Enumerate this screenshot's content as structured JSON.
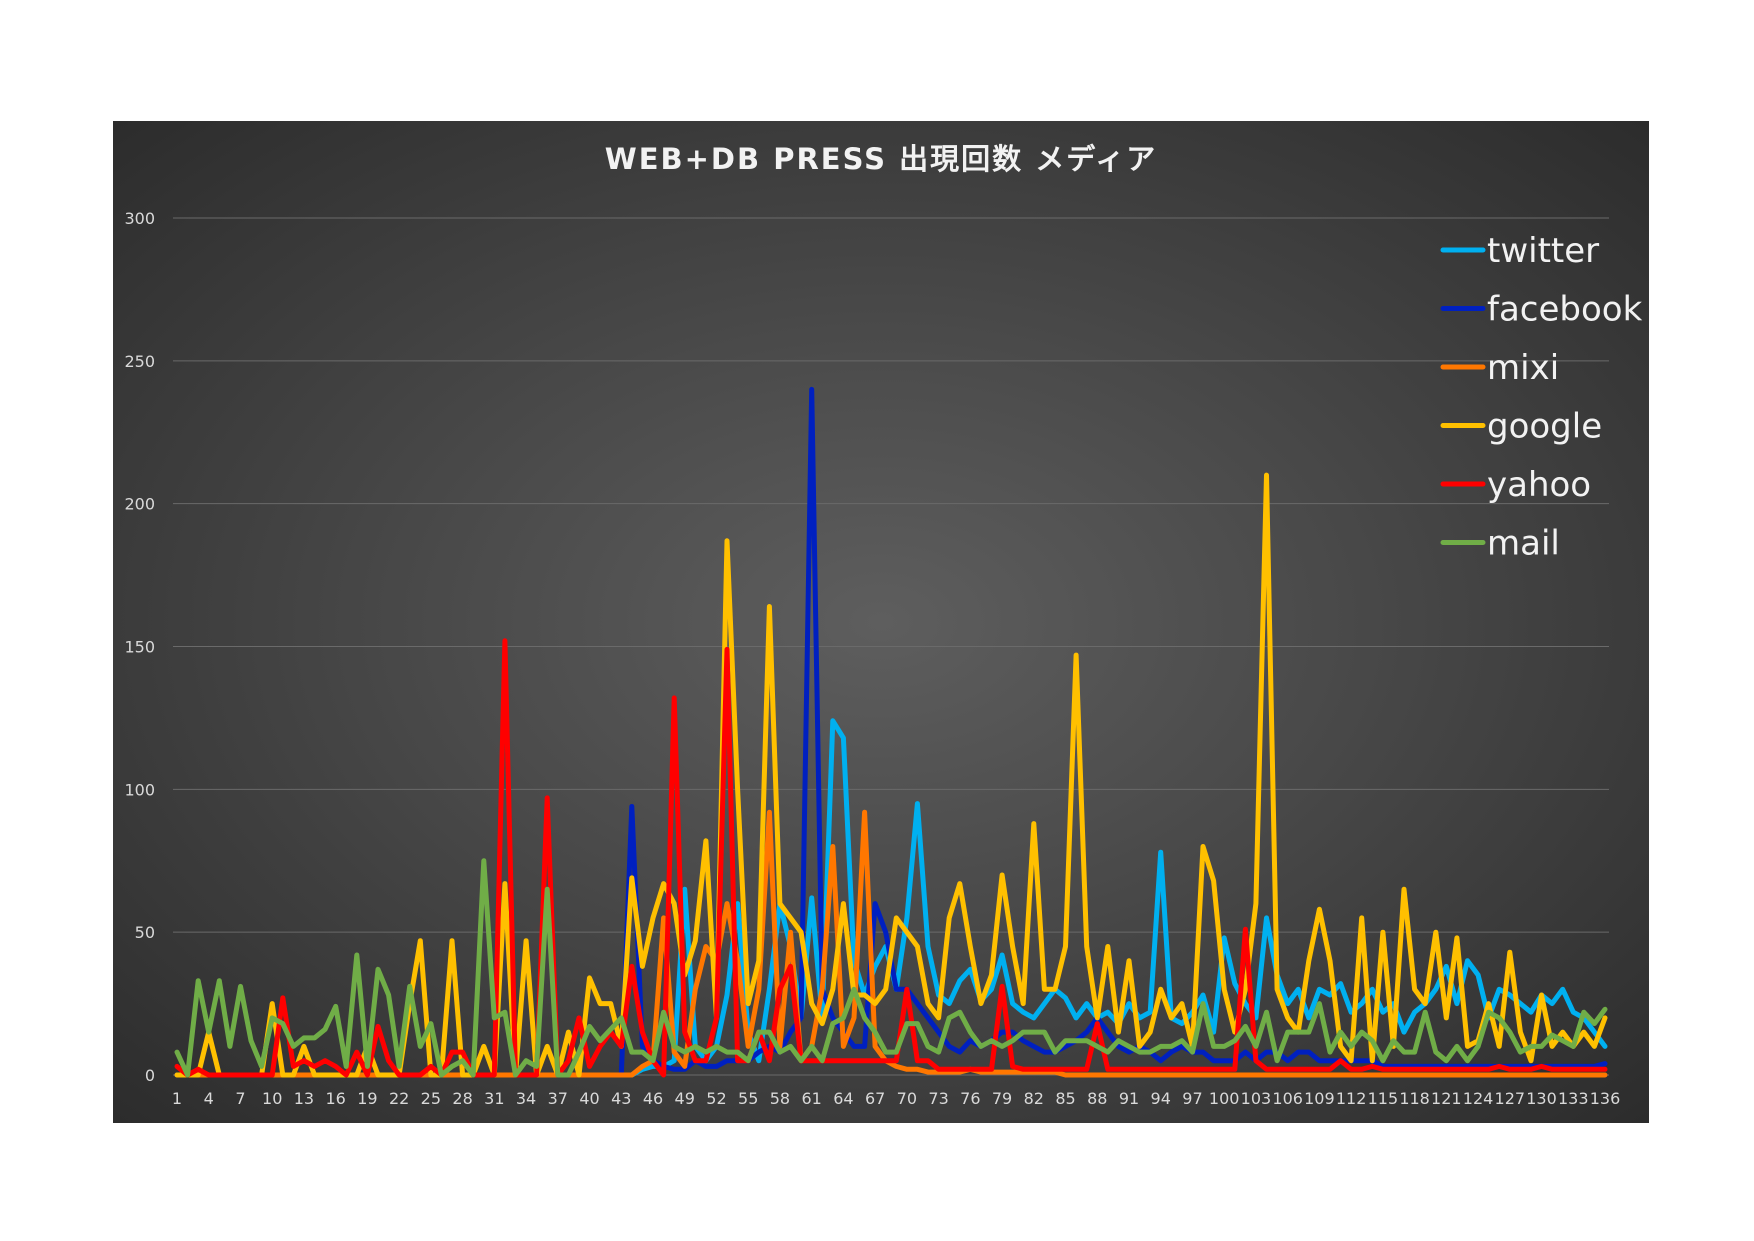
{
  "chart_data": {
    "type": "line",
    "title": "WEB+DB PRESS 出現回数 メディア",
    "xlabel": "",
    "ylabel": "",
    "ylim": [
      0,
      300
    ],
    "yticks": [
      0,
      50,
      100,
      150,
      200,
      250,
      300
    ],
    "grid": true,
    "legend": "right",
    "x": [
      1,
      2,
      3,
      4,
      5,
      6,
      7,
      8,
      9,
      10,
      11,
      12,
      13,
      14,
      15,
      16,
      17,
      18,
      19,
      20,
      21,
      22,
      23,
      24,
      25,
      26,
      27,
      28,
      29,
      30,
      31,
      32,
      33,
      34,
      35,
      36,
      37,
      38,
      39,
      40,
      41,
      42,
      43,
      44,
      45,
      46,
      47,
      48,
      49,
      50,
      51,
      52,
      53,
      54,
      55,
      56,
      57,
      58,
      59,
      60,
      61,
      62,
      63,
      64,
      65,
      66,
      67,
      68,
      69,
      70,
      71,
      72,
      73,
      74,
      75,
      76,
      77,
      78,
      79,
      80,
      81,
      82,
      83,
      84,
      85,
      86,
      87,
      88,
      89,
      90,
      91,
      92,
      93,
      94,
      95,
      96,
      97,
      98,
      99,
      100,
      101,
      102,
      103,
      104,
      105,
      106,
      107,
      108,
      109,
      110,
      111,
      112,
      113,
      114,
      115,
      116,
      117,
      118,
      119,
      120,
      121,
      122,
      123,
      124,
      125,
      126,
      127,
      128,
      129,
      130,
      131,
      132,
      133,
      134,
      135,
      136
    ],
    "xtick_labels": [
      "1",
      "4",
      "7",
      "10",
      "13",
      "16",
      "19",
      "22",
      "25",
      "28",
      "31",
      "34",
      "37",
      "40",
      "43",
      "46",
      "49",
      "52",
      "55",
      "58",
      "61",
      "64",
      "67",
      "70",
      "73",
      "76",
      "79",
      "82",
      "85",
      "88",
      "91",
      "94",
      "97",
      "100",
      "103",
      "106",
      "109",
      "112",
      "115",
      "118",
      "121",
      "124",
      "127",
      "130",
      "133",
      "136"
    ],
    "series": [
      {
        "name": "twitter",
        "color": "#00b0f0",
        "values": [
          0,
          0,
          0,
          0,
          0,
          0,
          0,
          0,
          0,
          0,
          0,
          0,
          0,
          0,
          0,
          0,
          0,
          0,
          0,
          0,
          0,
          0,
          0,
          0,
          0,
          0,
          0,
          0,
          0,
          0,
          0,
          0,
          0,
          0,
          0,
          0,
          0,
          0,
          0,
          0,
          0,
          0,
          0,
          0,
          2,
          3,
          3,
          5,
          65,
          10,
          5,
          10,
          28,
          60,
          15,
          5,
          30,
          60,
          45,
          20,
          62,
          20,
          124,
          118,
          40,
          28,
          38,
          45,
          30,
          55,
          95,
          45,
          28,
          25,
          33,
          37,
          26,
          30,
          42,
          25,
          22,
          20,
          25,
          30,
          27,
          20,
          25,
          20,
          22,
          18,
          25,
          20,
          22,
          78,
          20,
          18,
          22,
          28,
          15,
          48,
          32,
          25,
          20,
          55,
          35,
          25,
          30,
          20,
          30,
          28,
          32,
          22,
          25,
          30,
          22,
          25,
          15,
          22,
          25,
          30,
          38,
          25,
          40,
          35,
          20,
          30,
          28,
          25,
          22,
          28,
          25,
          30,
          22,
          20,
          15,
          10
        ]
      },
      {
        "name": "facebook",
        "color": "#0020c0",
        "values": [
          0,
          0,
          0,
          0,
          0,
          0,
          0,
          0,
          0,
          0,
          0,
          0,
          0,
          0,
          0,
          0,
          0,
          0,
          0,
          0,
          0,
          0,
          0,
          0,
          0,
          0,
          0,
          0,
          0,
          0,
          0,
          0,
          0,
          0,
          0,
          0,
          0,
          0,
          0,
          0,
          0,
          0,
          0,
          94,
          10,
          5,
          3,
          2,
          2,
          5,
          3,
          3,
          5,
          5,
          5,
          8,
          10,
          8,
          15,
          20,
          240,
          30,
          20,
          15,
          10,
          10,
          60,
          50,
          30,
          30,
          25,
          20,
          15,
          10,
          8,
          12,
          10,
          12,
          15,
          15,
          12,
          10,
          8,
          8,
          10,
          12,
          15,
          20,
          15,
          10,
          8,
          10,
          8,
          5,
          8,
          10,
          8,
          8,
          5,
          5,
          5,
          8,
          5,
          8,
          8,
          5,
          8,
          8,
          5,
          5,
          5,
          5,
          5,
          5,
          3,
          3,
          3,
          3,
          3,
          3,
          3,
          3,
          3,
          3,
          3,
          3,
          3,
          3,
          3,
          3,
          3,
          3,
          3,
          3,
          3,
          4
        ]
      },
      {
        "name": "mixi",
        "color": "#ff7700",
        "values": [
          0,
          0,
          0,
          0,
          0,
          0,
          0,
          0,
          0,
          0,
          0,
          0,
          0,
          0,
          0,
          0,
          0,
          0,
          0,
          0,
          0,
          0,
          0,
          0,
          0,
          0,
          0,
          0,
          0,
          0,
          0,
          0,
          0,
          0,
          0,
          0,
          0,
          0,
          0,
          0,
          0,
          0,
          0,
          0,
          3,
          5,
          55,
          8,
          3,
          30,
          45,
          40,
          60,
          40,
          10,
          30,
          92,
          10,
          50,
          5,
          10,
          30,
          80,
          10,
          20,
          92,
          10,
          5,
          3,
          2,
          2,
          1,
          1,
          1,
          1,
          2,
          1,
          1,
          1,
          1,
          1,
          1,
          1,
          1,
          0,
          0,
          0,
          0,
          0,
          0,
          0,
          0,
          0,
          0,
          0,
          0,
          0,
          0,
          0,
          0,
          0,
          0,
          0,
          0,
          0,
          0,
          0,
          0,
          0,
          0,
          0,
          0,
          0,
          0,
          0,
          0,
          0,
          0,
          0,
          0,
          0,
          0,
          0,
          0,
          0,
          0,
          0,
          0,
          0,
          0,
          0,
          0,
          0,
          0,
          0,
          0
        ]
      },
      {
        "name": "google",
        "color": "#ffc000",
        "values": [
          0,
          0,
          0,
          15,
          0,
          0,
          0,
          0,
          0,
          25,
          0,
          0,
          10,
          0,
          0,
          0,
          0,
          0,
          10,
          0,
          0,
          0,
          25,
          47,
          0,
          0,
          47,
          0,
          0,
          10,
          0,
          67,
          0,
          47,
          0,
          10,
          0,
          15,
          0,
          34,
          25,
          25,
          10,
          69,
          38,
          55,
          67,
          60,
          35,
          47,
          82,
          20,
          187,
          100,
          25,
          40,
          164,
          60,
          55,
          50,
          25,
          18,
          30,
          60,
          28,
          28,
          25,
          30,
          55,
          50,
          45,
          25,
          20,
          55,
          67,
          45,
          25,
          35,
          70,
          45,
          25,
          88,
          30,
          30,
          45,
          147,
          45,
          20,
          45,
          15,
          40,
          10,
          15,
          30,
          20,
          25,
          10,
          80,
          68,
          30,
          15,
          30,
          60,
          210,
          30,
          20,
          15,
          40,
          58,
          40,
          10,
          5,
          55,
          5,
          50,
          10,
          65,
          30,
          25,
          50,
          20,
          48,
          10,
          12,
          25,
          10,
          43,
          15,
          5,
          28,
          10,
          15,
          10,
          15,
          10,
          20
        ]
      },
      {
        "name": "yahoo",
        "color": "#ff0000",
        "values": [
          3,
          0,
          2,
          0,
          0,
          0,
          0,
          0,
          0,
          0,
          27,
          3,
          5,
          3,
          5,
          3,
          0,
          8,
          0,
          17,
          5,
          0,
          0,
          0,
          3,
          0,
          8,
          8,
          0,
          0,
          0,
          152,
          0,
          0,
          0,
          97,
          0,
          5,
          20,
          3,
          10,
          15,
          10,
          38,
          15,
          5,
          0,
          132,
          15,
          5,
          5,
          20,
          149,
          5,
          5,
          15,
          5,
          30,
          38,
          5,
          5,
          5,
          5,
          5,
          5,
          5,
          5,
          5,
          5,
          30,
          5,
          5,
          2,
          2,
          2,
          2,
          2,
          2,
          31,
          3,
          2,
          2,
          2,
          2,
          2,
          2,
          2,
          18,
          2,
          2,
          2,
          2,
          2,
          2,
          2,
          2,
          2,
          2,
          2,
          2,
          2,
          51,
          5,
          2,
          2,
          2,
          2,
          2,
          2,
          2,
          5,
          2,
          2,
          3,
          2,
          2,
          2,
          2,
          2,
          2,
          2,
          2,
          2,
          2,
          2,
          3,
          2,
          2,
          2,
          3,
          2,
          2,
          2,
          2,
          2,
          2
        ]
      },
      {
        "name": "mail",
        "color": "#70ad47",
        "values": [
          8,
          0,
          33,
          15,
          33,
          10,
          31,
          12,
          3,
          20,
          18,
          10,
          13,
          13,
          16,
          24,
          3,
          42,
          3,
          37,
          28,
          3,
          31,
          10,
          18,
          0,
          3,
          5,
          0,
          75,
          20,
          22,
          0,
          5,
          3,
          65,
          0,
          0,
          8,
          17,
          12,
          16,
          20,
          8,
          8,
          5,
          22,
          10,
          8,
          10,
          8,
          10,
          8,
          8,
          5,
          15,
          15,
          8,
          10,
          5,
          10,
          5,
          18,
          20,
          30,
          20,
          15,
          8,
          8,
          18,
          18,
          10,
          8,
          20,
          22,
          15,
          10,
          12,
          10,
          12,
          15,
          15,
          15,
          8,
          12,
          12,
          12,
          10,
          8,
          12,
          10,
          8,
          8,
          10,
          10,
          12,
          8,
          25,
          10,
          10,
          12,
          17,
          10,
          22,
          5,
          15,
          15,
          15,
          25,
          8,
          15,
          10,
          15,
          12,
          5,
          12,
          8,
          8,
          22,
          8,
          5,
          10,
          5,
          10,
          22,
          20,
          15,
          8,
          10,
          10,
          14,
          12,
          10,
          22,
          18,
          23
        ]
      }
    ]
  }
}
